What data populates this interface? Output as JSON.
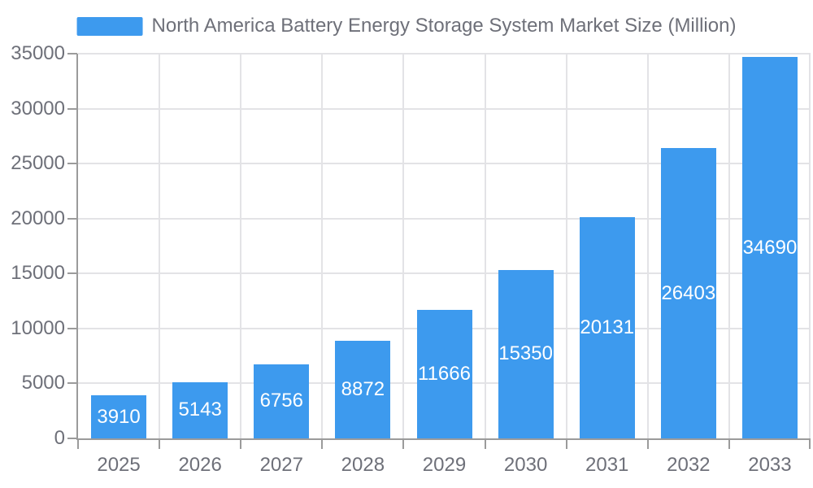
{
  "legend": {
    "label": "North America Battery Energy Storage System Market Size (Million)"
  },
  "chart_data": {
    "type": "bar",
    "title": "North America Battery Energy Storage System Market Size (Million)",
    "categories": [
      "2025",
      "2026",
      "2027",
      "2028",
      "2029",
      "2030",
      "2031",
      "2032",
      "2033"
    ],
    "values": [
      3910,
      5143,
      6756,
      8872,
      11666,
      15350,
      20131,
      26403,
      34690
    ],
    "xlabel": "",
    "ylabel": "",
    "ylim": [
      0,
      35000
    ],
    "ytick_interval": 5000,
    "ytick_labels": [
      "0",
      "5000",
      "10000",
      "15000",
      "20000",
      "25000",
      "30000",
      "35000"
    ],
    "grid": true,
    "legend_position": "top",
    "value_labels": "inside-center"
  },
  "colors": {
    "accent": "#3D9AEE",
    "grid_line": "#E3E3E6",
    "axis_line": "#9B9B9B",
    "text": "#6E7079",
    "bar_label": "#FFFFFF"
  }
}
